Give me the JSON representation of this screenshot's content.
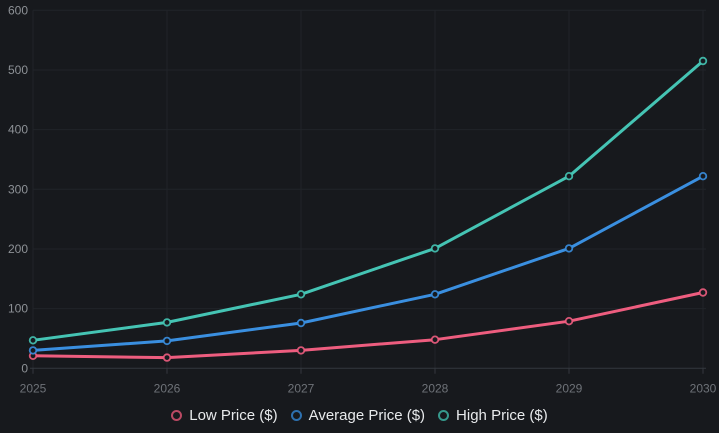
{
  "chart_data": {
    "type": "line",
    "title": "",
    "xlabel": "",
    "ylabel": "",
    "categories": [
      "2025",
      "2026",
      "2027",
      "2028",
      "2029",
      "2030"
    ],
    "series": [
      {
        "name": "Low Price ($)",
        "color": "#ee5d7f",
        "values": [
          21,
          18,
          30,
          48,
          79,
          127
        ]
      },
      {
        "name": "Average Price ($)",
        "color": "#3a8fe0",
        "values": [
          30,
          46,
          76,
          124,
          201,
          322
        ]
      },
      {
        "name": "High Price ($)",
        "color": "#45c4b4",
        "values": [
          47,
          77,
          124,
          201,
          322,
          515
        ]
      }
    ],
    "ylim": [
      0,
      600
    ],
    "yticks": [
      0,
      100,
      200,
      300,
      400,
      500,
      600
    ],
    "ytick_labels": [
      "0",
      "100",
      "200",
      "300",
      "400",
      "500",
      "600"
    ],
    "grid": true,
    "legend_position": "bottom"
  },
  "theme": {
    "background": "#17191d",
    "gridline": "#212429",
    "axis_line": "#34383e",
    "tick_mark": "#34383e",
    "y_label_color": "#8d9196",
    "x_label_color": "#6e7278",
    "legend_text_color": "#e8eaec",
    "point_fill": "#161a1f"
  }
}
